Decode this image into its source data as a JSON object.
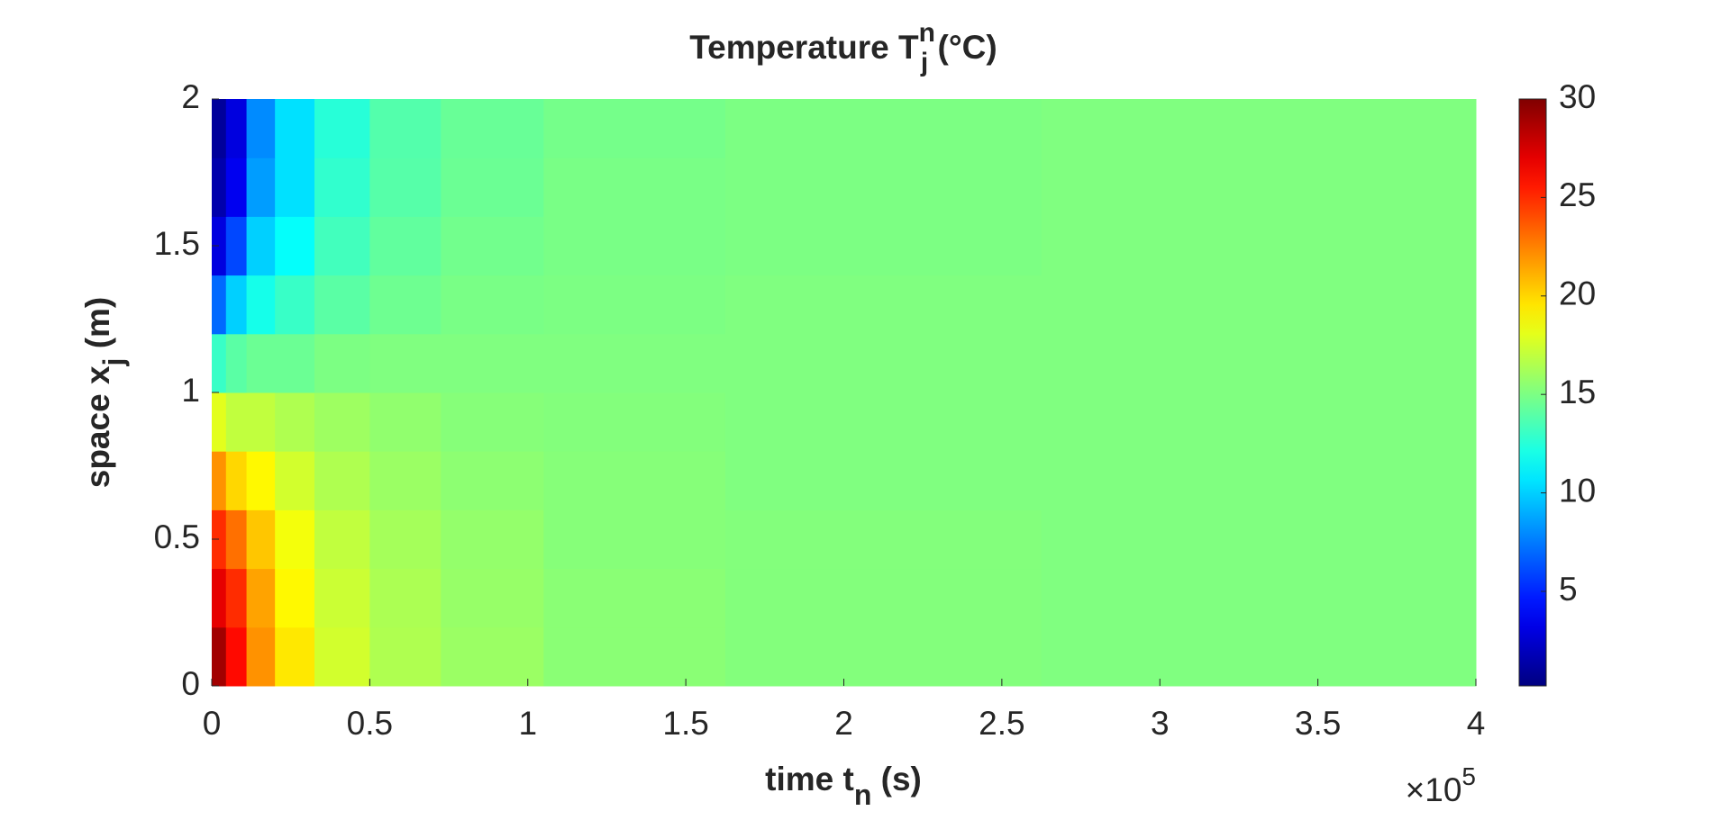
{
  "chart_data": {
    "type": "heatmap",
    "title": {
      "text": "Temperature T",
      "sub": "j",
      "sup": "n",
      "tail": " (°C)"
    },
    "x_label": {
      "text": "time t",
      "sub": "n",
      "tail": " (s)"
    },
    "y_label": {
      "text": "space x",
      "sub": "j",
      "tail": " (m)"
    },
    "x_multiplier": {
      "base": "×10",
      "power": "5"
    },
    "x": [
      0.02,
      0.07,
      0.15,
      0.25,
      0.4,
      0.6,
      0.85,
      1.25,
      2,
      3.25
    ],
    "y": [
      0.1,
      0.3,
      0.5,
      0.7,
      0.9,
      1.1,
      1.3,
      1.5,
      1.7,
      1.9
    ],
    "z": [
      [
        29,
        26,
        22,
        19.5,
        17.5,
        16.5,
        15.9,
        15.4,
        15.2,
        15.1
      ],
      [
        27,
        25,
        21.5,
        19,
        17.3,
        16.4,
        15.8,
        15.4,
        15.2,
        15.1
      ],
      [
        25,
        23,
        20.5,
        18.5,
        17,
        16.2,
        15.7,
        15.3,
        15.2,
        15.1
      ],
      [
        22,
        20,
        19,
        17.5,
        16.5,
        15.9,
        15.5,
        15.3,
        15.1,
        15.1
      ],
      [
        18,
        17,
        17,
        16.5,
        16,
        15.6,
        15.3,
        15.2,
        15.1,
        15.1
      ],
      [
        13,
        14,
        14.5,
        14.5,
        15,
        15.1,
        15.1,
        15.1,
        15.1,
        15.1
      ],
      [
        7,
        10,
        12,
        13,
        14,
        14.6,
        14.9,
        15,
        15.1,
        15.1
      ],
      [
        3,
        6,
        10,
        11.5,
        13.3,
        14.2,
        14.7,
        14.9,
        15,
        15.1
      ],
      [
        1.5,
        3.5,
        8.5,
        10.5,
        12.8,
        13.9,
        14.5,
        14.9,
        15,
        15.1
      ],
      [
        1,
        3,
        8,
        10.5,
        12.5,
        13.8,
        14.4,
        14.8,
        15,
        15.1
      ]
    ],
    "xlim": [
      0,
      4
    ],
    "xticks": [
      0,
      0.5,
      1,
      1.5,
      2,
      2.5,
      3,
      3.5,
      4
    ],
    "ylim": [
      0,
      2
    ],
    "yticks": [
      0,
      0.5,
      1,
      1.5,
      2
    ],
    "clim": [
      0.2,
      30
    ],
    "cticks": [
      5,
      10,
      15,
      20,
      25,
      30
    ],
    "colormap": "jet",
    "grid": false
  }
}
